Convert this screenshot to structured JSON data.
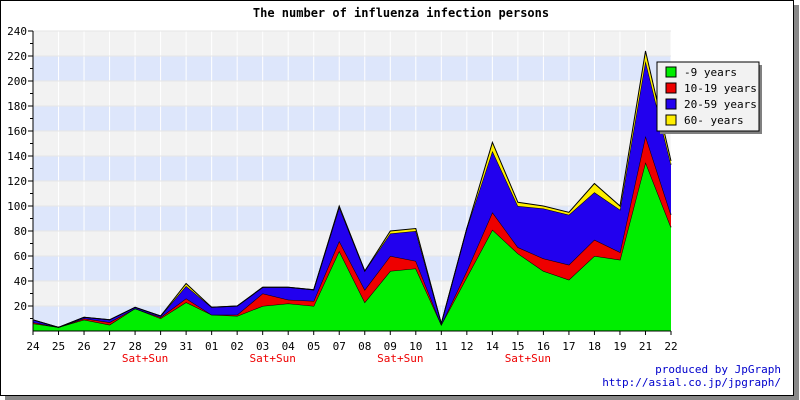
{
  "chart_data": {
    "type": "area",
    "stacked": true,
    "title": "The number of influenza infection persons",
    "categories": [
      "24",
      "25",
      "26",
      "27",
      "28",
      "29",
      "31",
      "01",
      "02",
      "03",
      "04",
      "05",
      "07",
      "08",
      "09",
      "10",
      "11",
      "12",
      "14",
      "15",
      "16",
      "17",
      "18",
      "19",
      "21",
      "22"
    ],
    "weekend_marks": [
      {
        "category": "28",
        "label": "Sat+Sun"
      },
      {
        "category": "03",
        "label": "Sat+Sun"
      },
      {
        "category": "09",
        "label": "Sat+Sun"
      },
      {
        "category": "15",
        "label": "Sat+Sun"
      }
    ],
    "ylim": [
      0,
      240
    ],
    "yticks": [
      20,
      40,
      60,
      80,
      100,
      120,
      140,
      160,
      180,
      200,
      220,
      240
    ],
    "grid": true,
    "legend_position": "top-right",
    "series": [
      {
        "name": "-9 years",
        "color": "#00ee00",
        "values": [
          6,
          3,
          9,
          5,
          18,
          10,
          23,
          13,
          12,
          20,
          22,
          20,
          64,
          23,
          48,
          50,
          5,
          43,
          81,
          62,
          48,
          41,
          60,
          57,
          135,
          83
        ]
      },
      {
        "name": "10-19 years",
        "color": "#ee0000",
        "values": [
          1,
          0,
          1,
          2,
          0,
          1,
          3,
          0,
          1,
          10,
          3,
          4,
          8,
          10,
          12,
          6,
          0,
          5,
          14,
          5,
          10,
          12,
          13,
          6,
          21,
          10
        ]
      },
      {
        "name": "20-59 years",
        "color": "#2200ee",
        "values": [
          2,
          0,
          1,
          2,
          1,
          1,
          10,
          6,
          7,
          5,
          10,
          9,
          27,
          15,
          18,
          24,
          1,
          34,
          49,
          33,
          40,
          40,
          38,
          34,
          60,
          40
        ]
      },
      {
        "name": "60- years",
        "color": "#ffee00",
        "values": [
          0,
          0,
          0,
          0,
          0,
          0,
          2,
          0,
          0,
          0,
          0,
          0,
          1,
          0,
          2,
          2,
          0,
          0,
          7,
          3,
          2,
          2,
          7,
          3,
          8,
          3
        ]
      }
    ]
  },
  "credit": {
    "line1": "produced by JpGraph",
    "line2": "http://asial.co.jp/jpgraph/"
  }
}
